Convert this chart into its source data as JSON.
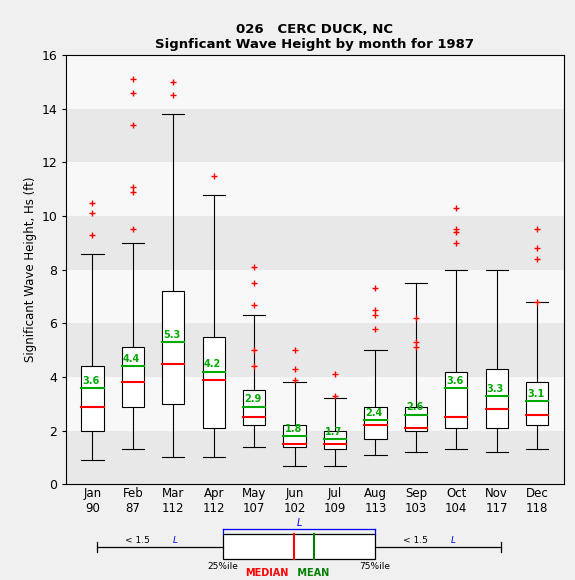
{
  "title1": "026   CERC DUCK, NC",
  "title2": "Signficant Wave Height by month for 1987",
  "ylabel": "Significant Wave Height, Hs (ft)",
  "ylim": [
    0,
    16
  ],
  "yticks": [
    0,
    2,
    4,
    6,
    8,
    10,
    12,
    14,
    16
  ],
  "month_names": [
    "Jan",
    "Feb",
    "Mar",
    "Apr",
    "May",
    "Jun",
    "Jul",
    "Aug",
    "Sep",
    "Oct",
    "Nov",
    "Dec"
  ],
  "month_counts": [
    "90",
    "87",
    "112",
    "112",
    "107",
    "102",
    "109",
    "113",
    "103",
    "104",
    "117",
    "118"
  ],
  "means": [
    3.6,
    4.4,
    5.3,
    4.2,
    2.9,
    1.8,
    1.7,
    2.4,
    2.6,
    3.6,
    3.3,
    3.1
  ],
  "boxes": [
    {
      "q1": 2.0,
      "median": 2.9,
      "q3": 4.4,
      "whislo": 0.9,
      "whishi": 8.6
    },
    {
      "q1": 2.9,
      "median": 3.8,
      "q3": 5.1,
      "whislo": 1.3,
      "whishi": 9.0
    },
    {
      "q1": 3.0,
      "median": 4.5,
      "q3": 7.2,
      "whislo": 1.0,
      "whishi": 13.8
    },
    {
      "q1": 2.1,
      "median": 3.9,
      "q3": 5.5,
      "whislo": 1.0,
      "whishi": 10.8
    },
    {
      "q1": 2.2,
      "median": 2.5,
      "q3": 3.5,
      "whislo": 1.4,
      "whishi": 6.3
    },
    {
      "q1": 1.4,
      "median": 1.5,
      "q3": 2.2,
      "whislo": 0.7,
      "whishi": 3.8
    },
    {
      "q1": 1.3,
      "median": 1.5,
      "q3": 2.0,
      "whislo": 0.7,
      "whishi": 3.2
    },
    {
      "q1": 1.7,
      "median": 2.2,
      "q3": 2.9,
      "whislo": 1.1,
      "whishi": 5.0
    },
    {
      "q1": 2.0,
      "median": 2.1,
      "q3": 2.9,
      "whislo": 1.2,
      "whishi": 7.5
    },
    {
      "q1": 2.1,
      "median": 2.5,
      "q3": 4.2,
      "whislo": 1.3,
      "whishi": 8.0
    },
    {
      "q1": 2.1,
      "median": 2.8,
      "q3": 4.3,
      "whislo": 1.2,
      "whishi": 8.0
    },
    {
      "q1": 2.2,
      "median": 2.6,
      "q3": 3.8,
      "whislo": 1.3,
      "whishi": 6.8
    }
  ],
  "outliers": [
    [
      9.3,
      10.1,
      10.5
    ],
    [
      9.5,
      10.9,
      11.1,
      13.4,
      14.6,
      15.1
    ],
    [
      14.5,
      15.0
    ],
    [
      11.5
    ],
    [
      4.4,
      5.0,
      6.7,
      7.5,
      8.1
    ],
    [
      3.9,
      4.3,
      5.0
    ],
    [
      3.3,
      4.1
    ],
    [
      5.8,
      6.3,
      6.5,
      7.3
    ],
    [
      5.1,
      5.3,
      6.2
    ],
    [
      9.0,
      9.4,
      9.5,
      10.3
    ],
    [],
    [
      6.8,
      8.4,
      8.8,
      9.5
    ]
  ],
  "bg_color": "#f0f0f0",
  "band_colors": [
    "#e8e8e8",
    "#f8f8f8"
  ],
  "median_color": "#ff0000",
  "mean_color": "#00aa00",
  "outlier_color": "#ff0000"
}
